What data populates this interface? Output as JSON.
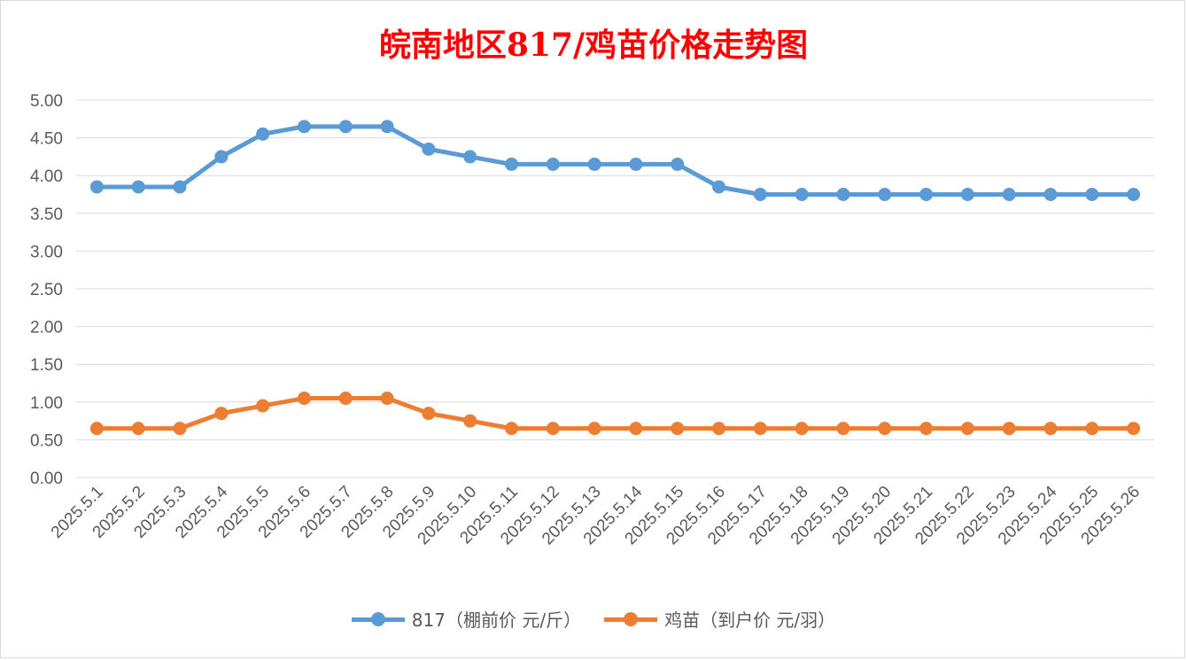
{
  "chart_data": {
    "type": "line",
    "title": "皖南地区817/鸡苗价格走势图",
    "categories": [
      "2025.5.1",
      "2025.5.2",
      "2025.5.3",
      "2025.5.4",
      "2025.5.5",
      "2025.5.6",
      "2025.5.7",
      "2025.5.8",
      "2025.5.9",
      "2025.5.10",
      "2025.5.11",
      "2025.5.12",
      "2025.5.13",
      "2025.5.14",
      "2025.5.15",
      "2025.5.16",
      "2025.5.17",
      "2025.5.18",
      "2025.5.19",
      "2025.5.20",
      "2025.5.21",
      "2025.5.22",
      "2025.5.23",
      "2025.5.24",
      "2025.5.25",
      "2025.5.26"
    ],
    "series": [
      {
        "name": "817（棚前价 元/斤）",
        "color": "#5b9bd5",
        "values": [
          3.85,
          3.85,
          3.85,
          4.25,
          4.55,
          4.65,
          4.65,
          4.65,
          4.35,
          4.25,
          4.15,
          4.15,
          4.15,
          4.15,
          4.15,
          3.85,
          3.75,
          3.75,
          3.75,
          3.75,
          3.75,
          3.75,
          3.75,
          3.75,
          3.75,
          3.75
        ]
      },
      {
        "name": "鸡苗（到户价 元/羽）",
        "color": "#ed7d31",
        "values": [
          0.65,
          0.65,
          0.65,
          0.85,
          0.95,
          1.05,
          1.05,
          1.05,
          0.85,
          0.75,
          0.65,
          0.65,
          0.65,
          0.65,
          0.65,
          0.65,
          0.65,
          0.65,
          0.65,
          0.65,
          0.65,
          0.65,
          0.65,
          0.65,
          0.65,
          0.65
        ]
      }
    ],
    "ylim": [
      0,
      5
    ],
    "yticks": [
      "0.00",
      "0.50",
      "1.00",
      "1.50",
      "2.00",
      "2.50",
      "3.00",
      "3.50",
      "4.00",
      "4.50",
      "5.00"
    ],
    "grid": true,
    "legend_position": "bottom"
  }
}
